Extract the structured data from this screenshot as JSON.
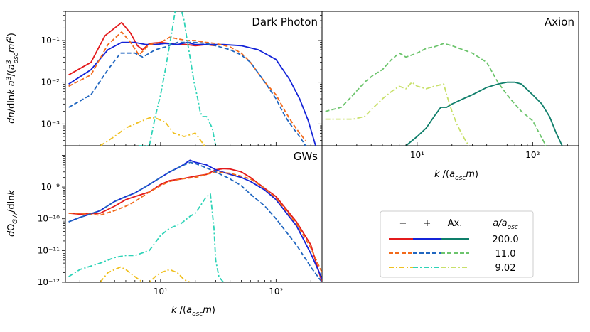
{
  "chart_data": [
    {
      "panel": "top-left",
      "type": "line",
      "title": "Dark Photon",
      "ylabel": "dn/dlnk a³/(a_osc³ m f²)",
      "xscale": "log",
      "yscale": "log",
      "xlim": [
        1.5,
        250
      ],
      "ylim": [
        0.0003,
        0.5
      ],
      "yticks": [
        {
          "v": 0.001,
          "label": "10⁻³"
        },
        {
          "v": 0.01,
          "label": "10⁻²"
        },
        {
          "v": 0.1,
          "label": "10⁻¹"
        }
      ],
      "series": [
        {
          "polarization": "-",
          "a": "200.0",
          "color": "#e31a1c",
          "dash": "solid",
          "x": [
            1.6,
            2.5,
            3.3,
            4.6,
            5.5,
            6.3,
            7,
            8,
            10,
            12,
            14,
            17,
            20,
            25,
            30
          ],
          "y": [
            0.015,
            0.03,
            0.13,
            0.27,
            0.15,
            0.075,
            0.06,
            0.085,
            0.09,
            0.085,
            0.08,
            0.08,
            0.075,
            0.08,
            0.075
          ]
        },
        {
          "polarization": "+",
          "a": "200.0",
          "color": "#1424d8",
          "dash": "solid",
          "x": [
            1.6,
            2.5,
            3.5,
            4.6,
            6,
            7.5,
            9,
            11,
            14,
            17,
            20,
            25,
            35,
            50,
            70,
            100,
            130,
            160,
            190,
            220
          ],
          "y": [
            0.009,
            0.02,
            0.06,
            0.09,
            0.09,
            0.08,
            0.08,
            0.085,
            0.08,
            0.09,
            0.08,
            0.08,
            0.08,
            0.075,
            0.06,
            0.035,
            0.012,
            0.004,
            0.0012,
            0.0003
          ]
        },
        {
          "polarization": "-",
          "a": "11.0",
          "color": "#f26a1b",
          "dash": "dashed",
          "x": [
            1.6,
            2.5,
            3.5,
            4.6,
            5.5,
            6.5,
            8,
            10,
            12,
            14,
            17,
            20,
            25,
            30,
            40,
            50,
            60,
            80,
            100,
            120,
            140,
            160,
            180
          ],
          "y": [
            0.008,
            0.015,
            0.08,
            0.16,
            0.09,
            0.045,
            0.08,
            0.09,
            0.12,
            0.11,
            0.1,
            0.1,
            0.09,
            0.085,
            0.07,
            0.05,
            0.03,
            0.01,
            0.005,
            0.002,
            0.001,
            0.0006,
            0.0004
          ]
        },
        {
          "polarization": "+",
          "a": "11.0",
          "color": "#2066c0",
          "dash": "dashed",
          "x": [
            1.6,
            2.5,
            3.5,
            4.5,
            6,
            7,
            9,
            11,
            14,
            17,
            20,
            25,
            30,
            40,
            50,
            60,
            80,
            100,
            120,
            140,
            160,
            180
          ],
          "y": [
            0.0025,
            0.005,
            0.02,
            0.05,
            0.05,
            0.04,
            0.06,
            0.07,
            0.09,
            0.09,
            0.09,
            0.085,
            0.075,
            0.06,
            0.045,
            0.03,
            0.01,
            0.004,
            0.0015,
            0.0008,
            0.0005,
            0.0003
          ]
        },
        {
          "polarization": "-",
          "a": "9.02",
          "color": "#f0c020",
          "dash": "dashdot",
          "x": [
            3,
            4,
            5,
            6,
            7,
            8,
            9,
            11,
            13,
            16,
            20,
            24
          ],
          "y": [
            0.0003,
            0.0005,
            0.0008,
            0.001,
            0.0012,
            0.0014,
            0.0014,
            0.0011,
            0.0006,
            0.0005,
            0.0006,
            0.0003
          ]
        },
        {
          "polarization": "+",
          "a": "9.02",
          "color": "#2ed3b7",
          "dash": "dashdot",
          "x": [
            6.5,
            8,
            9,
            10,
            11,
            12,
            12.7,
            13.5,
            15,
            16,
            17,
            18,
            19.5,
            21,
            22,
            23,
            25,
            28,
            30
          ],
          "y": [
            0.0003,
            0.0003,
            0.0015,
            0.005,
            0.02,
            0.08,
            0.2,
            0.6,
            0.6,
            0.3,
            0.1,
            0.04,
            0.01,
            0.004,
            0.002,
            0.0015,
            0.0015,
            0.0008,
            0.0003
          ]
        }
      ]
    },
    {
      "panel": "top-right",
      "type": "line",
      "title": "Axion",
      "xlabel": "k /(a_osc m)",
      "xscale": "log",
      "yscale": "log",
      "xlim": [
        1.5,
        250
      ],
      "ylim": [
        0.0003,
        0.5
      ],
      "xticks": [
        {
          "v": 10,
          "label": "10¹"
        },
        {
          "v": 100,
          "label": "10²"
        }
      ],
      "series": [
        {
          "polarization": "Ax.",
          "a": "200.0",
          "color": "#0e7e6a",
          "dash": "solid",
          "x": [
            8,
            10,
            12,
            14,
            16,
            18,
            20,
            25,
            30,
            40,
            50,
            60,
            70,
            80,
            100,
            120,
            140,
            160,
            180
          ],
          "y": [
            0.0003,
            0.0005,
            0.0008,
            0.0015,
            0.0025,
            0.0025,
            0.003,
            0.004,
            0.005,
            0.0075,
            0.009,
            0.01,
            0.01,
            0.009,
            0.005,
            0.003,
            0.0015,
            0.0006,
            0.0003
          ]
        },
        {
          "polarization": "Ax.",
          "a": "11.0",
          "color": "#6cc46c",
          "dash": "dashed",
          "x": [
            1.6,
            2.2,
            2.8,
            3.5,
            4.2,
            5,
            6,
            7,
            8,
            10,
            12,
            14,
            17,
            20,
            25,
            30,
            40,
            50,
            60,
            70,
            80,
            100,
            130
          ],
          "y": [
            0.002,
            0.0025,
            0.005,
            0.01,
            0.015,
            0.02,
            0.035,
            0.05,
            0.04,
            0.05,
            0.065,
            0.07,
            0.085,
            0.075,
            0.06,
            0.05,
            0.03,
            0.01,
            0.005,
            0.003,
            0.002,
            0.0012,
            0.0003
          ]
        },
        {
          "polarization": "Ax.",
          "a": "9.02",
          "color": "#c8e06a",
          "dash": "dashdot",
          "x": [
            1.6,
            2.2,
            2.8,
            3.5,
            4.2,
            5,
            6,
            7,
            8,
            9,
            10,
            12,
            14,
            17,
            18,
            20,
            22,
            25,
            28
          ],
          "y": [
            0.0013,
            0.0013,
            0.0013,
            0.0015,
            0.0025,
            0.004,
            0.006,
            0.008,
            0.007,
            0.01,
            0.008,
            0.007,
            0.008,
            0.009,
            0.005,
            0.002,
            0.001,
            0.0005,
            0.0003
          ]
        }
      ]
    },
    {
      "panel": "bottom-left",
      "type": "line",
      "title": "GWs",
      "ylabel": "dΩ_GW/dlnk",
      "xlabel": "k /(a_osc m)",
      "xscale": "log",
      "yscale": "log",
      "xlim": [
        1.5,
        250
      ],
      "ylim": [
        1e-12,
        2e-08
      ],
      "xticks": [
        {
          "v": 10,
          "label": "10¹"
        },
        {
          "v": 100,
          "label": "10²"
        }
      ],
      "yticks": [
        {
          "v": 1e-12,
          "label": "10⁻¹²"
        },
        {
          "v": 1e-11,
          "label": "10⁻¹¹"
        },
        {
          "v": 1e-10,
          "label": "10⁻¹⁰"
        },
        {
          "v": 1e-09,
          "label": "10⁻⁹"
        }
      ],
      "series": [
        {
          "polarization": "-",
          "a": "200.0",
          "color": "#e31a1c",
          "dash": "solid",
          "x": [
            1.6,
            2,
            3,
            4,
            5,
            6,
            8,
            10,
            12,
            15,
            20,
            25,
            30,
            35,
            40,
            50,
            60,
            80,
            100,
            150,
            200,
            250
          ],
          "y": [
            1.5e-10,
            1.4e-10,
            1.5e-10,
            2.5e-10,
            4e-10,
            5e-10,
            7e-10,
            1.2e-09,
            1.6e-09,
            1.8e-09,
            2.2e-09,
            2.5e-09,
            3.5e-09,
            3.8e-09,
            3.7e-09,
            3e-09,
            2e-09,
            9e-10,
            5e-10,
            8e-11,
            1.5e-11,
            1e-12
          ]
        },
        {
          "polarization": "+",
          "a": "200.0",
          "color": "#1424d8",
          "dash": "solid",
          "x": [
            1.6,
            2,
            3,
            4,
            5,
            6,
            8,
            10,
            12,
            15,
            18,
            20,
            25,
            30,
            40,
            50,
            60,
            80,
            100,
            150,
            200,
            250
          ],
          "y": [
            8e-11,
            1.1e-10,
            1.8e-10,
            3.5e-10,
            5e-10,
            6.5e-10,
            1.2e-09,
            2e-09,
            3e-09,
            4.5e-09,
            7e-09,
            6e-09,
            5e-09,
            3.5e-09,
            2.5e-09,
            2e-09,
            1.5e-09,
            8e-10,
            4e-10,
            6e-11,
            8e-12,
            1.3e-12
          ]
        },
        {
          "polarization": "-",
          "a": "11.0",
          "color": "#f26a1b",
          "dash": "dashed",
          "x": [
            1.6,
            2,
            3,
            4,
            5,
            6,
            8,
            10,
            12,
            15,
            20,
            25,
            30,
            40,
            50,
            60,
            80,
            100,
            150,
            200,
            250
          ],
          "y": [
            1.5e-10,
            1.5e-10,
            1.3e-10,
            1.8e-10,
            2.5e-10,
            3.5e-10,
            7e-10,
            1.1e-09,
            1.5e-09,
            1.8e-09,
            2e-09,
            2.5e-09,
            3e-09,
            2.7e-09,
            2.2e-09,
            1.8e-09,
            9e-10,
            4.5e-10,
            7e-11,
            1.2e-11,
            2e-12
          ]
        },
        {
          "polarization": "+",
          "a": "11.0",
          "color": "#2066c0",
          "dash": "dashed",
          "x": [
            1.6,
            2,
            3,
            4,
            5,
            6,
            8,
            10,
            12,
            15,
            18,
            20,
            25,
            30,
            40,
            50,
            60,
            80,
            100,
            150,
            200,
            250
          ],
          "y": [
            8e-11,
            1.1e-10,
            1.8e-10,
            3.5e-10,
            5e-10,
            6.5e-10,
            1.2e-09,
            2e-09,
            3e-09,
            4.5e-09,
            6e-09,
            5.5e-09,
            4e-09,
            3e-09,
            1.8e-09,
            1.1e-09,
            6e-10,
            2.5e-10,
            1e-10,
            1.5e-11,
            3e-12,
            1e-12
          ]
        },
        {
          "polarization": "-",
          "a": "9.02",
          "color": "#f0c020",
          "dash": "dashdot",
          "x": [
            3,
            3.5,
            4,
            4.5,
            5,
            6,
            7,
            8,
            9,
            10,
            12,
            14,
            16,
            18,
            20
          ],
          "y": [
            1e-12,
            2e-12,
            2.5e-12,
            3e-12,
            2.5e-12,
            1.5e-12,
            1e-12,
            1e-12,
            1.5e-12,
            2e-12,
            2.5e-12,
            2e-12,
            1.2e-12,
            1e-12,
            1e-12
          ]
        },
        {
          "polarization": "+",
          "a": "9.02",
          "color": "#2ed3b7",
          "dash": "dashdot",
          "x": [
            1.6,
            2,
            3,
            4,
            5,
            6,
            8,
            10,
            12,
            15,
            18,
            20,
            22,
            25,
            27,
            29,
            30,
            32,
            35
          ],
          "y": [
            1.5e-12,
            2.5e-12,
            4e-12,
            6e-12,
            7e-12,
            7e-12,
            1e-11,
            3e-11,
            5e-11,
            7e-11,
            1.2e-10,
            1.5e-10,
            2.5e-10,
            5e-10,
            6e-10,
            5e-11,
            5e-12,
            1.5e-12,
            1e-12
          ]
        }
      ]
    }
  ],
  "legend": {
    "headers": [
      "−",
      "+",
      "Ax.",
      "a/a_osc"
    ],
    "rows": [
      {
        "label": "200.0",
        "styles": [
          {
            "color": "#e31a1c",
            "dash": "solid"
          },
          {
            "color": "#1424d8",
            "dash": "solid"
          },
          {
            "color": "#0e7e6a",
            "dash": "solid"
          }
        ]
      },
      {
        "label": "11.0",
        "styles": [
          {
            "color": "#f26a1b",
            "dash": "dashed"
          },
          {
            "color": "#2066c0",
            "dash": "dashed"
          },
          {
            "color": "#6cc46c",
            "dash": "dashed"
          }
        ]
      },
      {
        "label": "9.02",
        "styles": [
          {
            "color": "#f0c020",
            "dash": "dashdot"
          },
          {
            "color": "#2ed3b7",
            "dash": "dashdot"
          },
          {
            "color": "#c8e06a",
            "dash": "dashdot"
          }
        ]
      }
    ]
  }
}
